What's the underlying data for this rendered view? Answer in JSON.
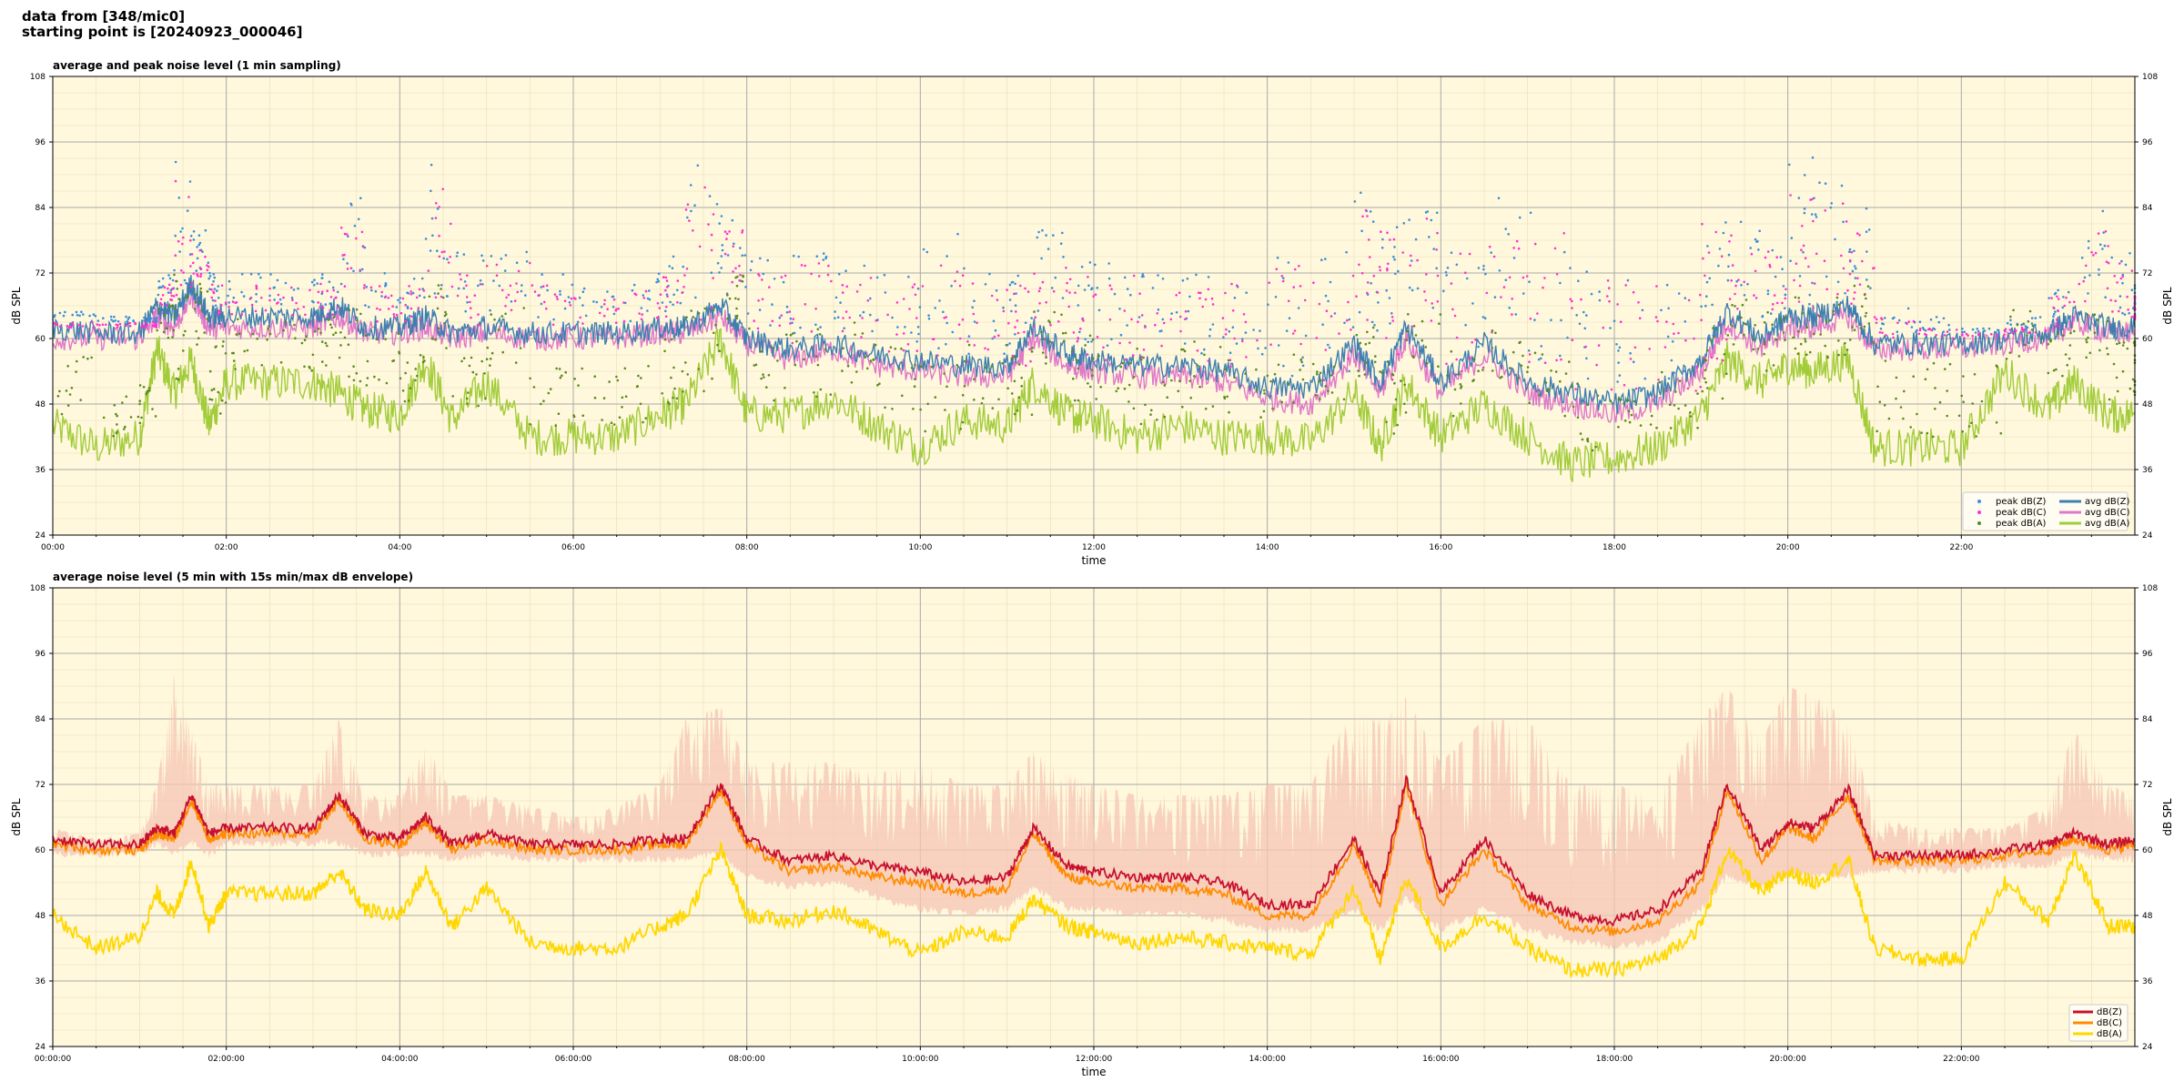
{
  "header": {
    "line1": "data from [348/mic0]",
    "line2": "starting point is [20240923_000046]"
  },
  "colors": {
    "plot_background": "#fff8dc",
    "peak_z": "#3a8fd9",
    "peak_c": "#ff33cc",
    "peak_a": "#5a8a1e",
    "avg_z": "#3f7fb0",
    "avg_c": "#e077c8",
    "avg_a": "#a2cc3a",
    "env_fill": "#f5c6b4",
    "db_z": "#c8102e",
    "db_c": "#ff8c00",
    "db_a": "#ffd700"
  },
  "chart_data": [
    {
      "type": "line",
      "title": "average and peak noise level (1 min sampling)",
      "xlabel": "time",
      "ylabel": "dB SPL",
      "ylim": [
        24,
        108
      ],
      "xlim_hours": [
        0,
        24
      ],
      "yticks": [
        "24",
        "36",
        "48",
        "60",
        "72",
        "84",
        "96",
        "108"
      ],
      "xticks": [
        "00:00",
        "02:00",
        "04:00",
        "06:00",
        "08:00",
        "10:00",
        "12:00",
        "14:00",
        "16:00",
        "18:00",
        "20:00",
        "22:00"
      ],
      "grid": true,
      "legend_position": "lower-right",
      "legend": [
        {
          "label": "peak dB(Z)",
          "kind": "dot",
          "color_key": "peak_z"
        },
        {
          "label": "peak dB(C)",
          "kind": "dot",
          "color_key": "peak_c"
        },
        {
          "label": "peak dB(A)",
          "kind": "dot",
          "color_key": "peak_a"
        },
        {
          "label": "avg dB(Z)",
          "kind": "line",
          "color_key": "avg_z"
        },
        {
          "label": "avg dB(C)",
          "kind": "line",
          "color_key": "avg_c"
        },
        {
          "label": "avg dB(A)",
          "kind": "line",
          "color_key": "avg_a"
        }
      ],
      "x_hours": [
        0,
        0.5,
        1,
        1.2,
        1.4,
        1.6,
        1.8,
        2,
        2.5,
        3,
        3.3,
        3.6,
        4,
        4.3,
        4.6,
        5,
        5.5,
        6,
        6.5,
        7,
        7.3,
        7.7,
        8,
        8.5,
        9,
        9.5,
        10,
        10.5,
        11,
        11.3,
        11.7,
        12,
        12.5,
        13,
        13.5,
        14,
        14.5,
        15,
        15.3,
        15.6,
        16,
        16.5,
        17,
        17.5,
        18,
        18.5,
        19,
        19.3,
        19.7,
        20,
        20.3,
        20.7,
        21,
        21.5,
        22,
        22.5,
        23,
        23.3,
        23.7,
        24
      ],
      "series": [
        {
          "name": "avg dB(Z)",
          "color_key": "avg_z",
          "values": [
            62,
            61,
            61,
            66,
            64,
            70,
            64,
            64,
            64,
            64,
            66,
            62,
            62,
            64,
            61,
            62,
            61,
            61,
            61,
            62,
            62,
            66,
            60,
            58,
            59,
            57,
            56,
            55,
            55,
            62,
            57,
            56,
            55,
            55,
            54,
            51,
            51,
            59,
            52,
            62,
            52,
            59,
            52,
            50,
            48,
            50,
            56,
            65,
            60,
            64,
            64,
            66,
            59,
            59,
            59,
            60,
            61,
            64,
            62,
            62
          ]
        },
        {
          "name": "avg dB(C)",
          "color_key": "avg_c",
          "values": [
            60,
            60,
            60,
            64,
            62,
            68,
            62,
            62,
            62,
            62,
            64,
            61,
            61,
            62,
            60,
            61,
            60,
            60,
            60,
            61,
            61,
            64,
            59,
            56,
            58,
            55,
            54,
            53,
            53,
            60,
            55,
            54,
            53,
            53,
            52,
            49,
            48,
            57,
            50,
            60,
            50,
            57,
            50,
            48,
            46,
            48,
            54,
            63,
            58,
            62,
            62,
            64,
            58,
            58,
            58,
            59,
            60,
            63,
            61,
            61
          ]
        },
        {
          "name": "avg dB(A)",
          "color_key": "avg_a",
          "values": [
            44,
            40,
            42,
            58,
            50,
            56,
            44,
            52,
            52,
            52,
            50,
            47,
            46,
            56,
            45,
            52,
            42,
            42,
            42,
            46,
            48,
            60,
            46,
            46,
            49,
            44,
            40,
            45,
            44,
            52,
            46,
            45,
            42,
            44,
            42,
            42,
            41,
            50,
            40,
            52,
            42,
            48,
            42,
            37,
            38,
            40,
            46,
            56,
            52,
            55,
            54,
            56,
            40,
            40,
            40,
            54,
            47,
            52,
            46,
            46
          ]
        },
        {
          "name": "peak dB(Z)",
          "color_key": "peak_z",
          "values": [
            64,
            62,
            63,
            72,
            94,
            80,
            72,
            72,
            72,
            72,
            86,
            72,
            72,
            94,
            76,
            76,
            72,
            70,
            72,
            76,
            92,
            84,
            76,
            76,
            74,
            72,
            80,
            74,
            72,
            80,
            74,
            74,
            72,
            72,
            72,
            76,
            76,
            88,
            82,
            86,
            80,
            86,
            84,
            74,
            72,
            70,
            86,
            84,
            78,
            94,
            90,
            84,
            66,
            64,
            62,
            64,
            70,
            84,
            76,
            70
          ]
        },
        {
          "name": "peak dB(C)",
          "color_key": "peak_c",
          "values": [
            62,
            61,
            62,
            70,
            90,
            78,
            70,
            70,
            70,
            70,
            82,
            70,
            70,
            90,
            74,
            74,
            70,
            68,
            70,
            74,
            88,
            80,
            74,
            74,
            72,
            70,
            76,
            72,
            70,
            76,
            72,
            72,
            70,
            70,
            70,
            74,
            74,
            84,
            80,
            82,
            76,
            82,
            80,
            72,
            70,
            68,
            82,
            80,
            76,
            90,
            86,
            80,
            64,
            62,
            60,
            62,
            68,
            80,
            74,
            68
          ]
        },
        {
          "name": "peak dB(A)",
          "color_key": "peak_a",
          "values": [
            58,
            50,
            52,
            66,
            72,
            70,
            60,
            64,
            64,
            64,
            66,
            62,
            60,
            70,
            58,
            66,
            56,
            55,
            56,
            60,
            66,
            74,
            62,
            62,
            64,
            60,
            56,
            60,
            60,
            66,
            62,
            60,
            58,
            60,
            58,
            58,
            56,
            64,
            56,
            66,
            58,
            62,
            58,
            52,
            52,
            54,
            62,
            70,
            66,
            70,
            68,
            70,
            56,
            56,
            56,
            66,
            62,
            66,
            60,
            60
          ]
        }
      ]
    },
    {
      "type": "area",
      "title": "average noise level (5 min with 15s min/max dB envelope)",
      "xlabel": "time",
      "ylabel": "dB SPL",
      "ylim": [
        24,
        108
      ],
      "xlim_hours": [
        0,
        24
      ],
      "yticks": [
        "24",
        "36",
        "48",
        "60",
        "72",
        "84",
        "96",
        "108"
      ],
      "xticks": [
        "00:00:00",
        "02:00:00",
        "04:00:00",
        "06:00:00",
        "08:00:00",
        "10:00:00",
        "12:00:00",
        "14:00:00",
        "16:00:00",
        "18:00:00",
        "20:00:00",
        "22:00:00"
      ],
      "grid": true,
      "legend_position": "lower-right",
      "legend": [
        {
          "label": "dB(Z)",
          "kind": "line",
          "color_key": "db_z"
        },
        {
          "label": "dB(C)",
          "kind": "line",
          "color_key": "db_c"
        },
        {
          "label": "dB(A)",
          "kind": "line",
          "color_key": "db_a"
        }
      ],
      "x_hours": [
        0,
        0.5,
        1,
        1.2,
        1.4,
        1.6,
        1.8,
        2,
        2.5,
        3,
        3.3,
        3.6,
        4,
        4.3,
        4.6,
        5,
        5.5,
        6,
        6.5,
        7,
        7.3,
        7.7,
        8,
        8.5,
        9,
        9.5,
        10,
        10.5,
        11,
        11.3,
        11.7,
        12,
        12.5,
        13,
        13.5,
        14,
        14.5,
        15,
        15.3,
        15.6,
        16,
        16.5,
        17,
        17.5,
        18,
        18.5,
        19,
        19.3,
        19.7,
        20,
        20.3,
        20.7,
        21,
        21.5,
        22,
        22.5,
        23,
        23.3,
        23.7,
        24
      ],
      "envelope_upper": [
        64,
        62,
        63,
        72,
        92,
        82,
        72,
        72,
        72,
        72,
        84,
        70,
        70,
        80,
        70,
        70,
        68,
        66,
        68,
        72,
        84,
        86,
        76,
        76,
        76,
        74,
        76,
        72,
        72,
        78,
        74,
        72,
        70,
        70,
        70,
        72,
        72,
        86,
        84,
        88,
        76,
        84,
        84,
        72,
        72,
        70,
        84,
        90,
        80,
        90,
        88,
        84,
        66,
        64,
        64,
        64,
        68,
        82,
        72,
        70
      ],
      "envelope_lower": [
        60,
        60,
        60,
        62,
        60,
        62,
        60,
        62,
        62,
        62,
        62,
        60,
        60,
        60,
        59,
        60,
        59,
        59,
        59,
        59,
        59,
        60,
        56,
        54,
        55,
        52,
        50,
        49,
        50,
        54,
        50,
        50,
        49,
        49,
        48,
        46,
        46,
        50,
        46,
        52,
        46,
        50,
        46,
        44,
        43,
        44,
        50,
        56,
        54,
        56,
        56,
        56,
        57,
        57,
        57,
        58,
        58,
        60,
        59,
        59
      ],
      "series": [
        {
          "name": "dB(Z)",
          "color_key": "db_z",
          "values": [
            62,
            61,
            61,
            64,
            63,
            70,
            63,
            64,
            64,
            64,
            70,
            63,
            62,
            66,
            61,
            63,
            61,
            61,
            61,
            62,
            62,
            72,
            62,
            58,
            59,
            57,
            56,
            54,
            55,
            64,
            57,
            56,
            55,
            55,
            54,
            50,
            50,
            62,
            52,
            73,
            52,
            62,
            52,
            48,
            47,
            49,
            56,
            72,
            60,
            65,
            64,
            71,
            59,
            59,
            59,
            60,
            61,
            63,
            61,
            62
          ]
        },
        {
          "name": "dB(C)",
          "color_key": "db_c",
          "values": [
            61,
            60,
            60,
            63,
            62,
            69,
            62,
            63,
            63,
            63,
            69,
            62,
            61,
            65,
            60,
            62,
            60,
            60,
            60,
            61,
            61,
            71,
            61,
            56,
            57,
            55,
            54,
            52,
            53,
            63,
            55,
            54,
            53,
            53,
            52,
            48,
            48,
            61,
            50,
            72,
            50,
            60,
            50,
            46,
            45,
            47,
            54,
            71,
            58,
            64,
            62,
            70,
            58,
            58,
            58,
            59,
            60,
            62,
            60,
            61
          ]
        },
        {
          "name": "dB(A)",
          "color_key": "db_a",
          "values": [
            48,
            42,
            44,
            52,
            48,
            58,
            46,
            52,
            52,
            52,
            56,
            49,
            48,
            56,
            46,
            53,
            43,
            42,
            42,
            46,
            48,
            60,
            48,
            47,
            49,
            45,
            41,
            45,
            44,
            51,
            46,
            45,
            43,
            44,
            43,
            42,
            41,
            53,
            40,
            55,
            42,
            48,
            42,
            38,
            38,
            40,
            46,
            60,
            52,
            56,
            54,
            58,
            42,
            40,
            40,
            54,
            47,
            59,
            46,
            46
          ]
        }
      ]
    }
  ]
}
